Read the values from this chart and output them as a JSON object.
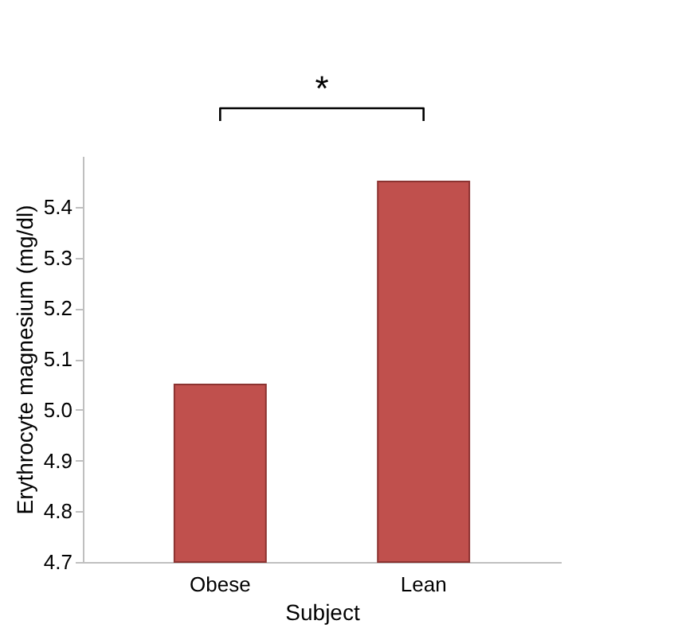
{
  "chart_data": {
    "type": "bar",
    "categories": [
      "Obese",
      "Lean"
    ],
    "values": [
      5.05,
      5.45
    ],
    "color": "#c0504d",
    "xlabel": "Subject",
    "ylabel": "Erythrocyte magnesium (mg/dl)",
    "ylim": [
      4.7,
      5.5
    ],
    "yticks": [
      4.7,
      4.8,
      4.9,
      {
        "value": 5.0,
        "label": "5.0"
      },
      5.1,
      5.2,
      5.3,
      5.4
    ],
    "annotations": [
      "*"
    ],
    "grid": false
  }
}
